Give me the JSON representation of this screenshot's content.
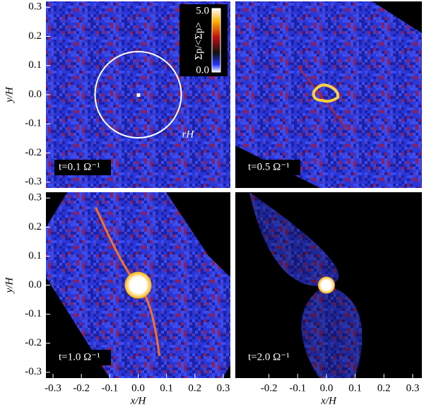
{
  "chart_data": [
    {
      "type": "density-map",
      "annotation": "t=0.1 Ω⁻¹",
      "circle_label": "rH",
      "ylabel": "y/H",
      "xlim": [
        -0.325,
        0.325
      ],
      "ylim": [
        -0.32,
        0.32
      ],
      "yticks": [
        0.3,
        0.2,
        0.1,
        {
          "value": 0,
          "label": "0.0"
        },
        -0.1,
        -0.2,
        -0.3
      ]
    },
    {
      "type": "density-map",
      "annotation": "t=0.5 Ω⁻¹",
      "xlim": [
        -0.317,
        0.332
      ],
      "ylim": [
        -0.32,
        0.32
      ]
    },
    {
      "type": "density-map",
      "annotation": "t=1.0 Ω⁻¹",
      "ylabel": "y/H",
      "xlabel": "x/H",
      "xlim": [
        -0.325,
        0.325
      ],
      "ylim": [
        -0.32,
        0.32
      ],
      "xticks": [
        -0.3,
        -0.2,
        -0.1,
        {
          "value": 0,
          "label": "0.0"
        },
        0.1,
        0.2,
        0.3
      ],
      "yticks": [
        0.3,
        0.2,
        0.1,
        {
          "value": 0,
          "label": "0.0"
        },
        -0.1,
        -0.2,
        -0.3
      ]
    },
    {
      "type": "density-map",
      "annotation": "t=2.0 Ω⁻¹",
      "xlabel": "x/H",
      "xlim": [
        -0.317,
        0.332
      ],
      "ylim": [
        -0.32,
        0.32
      ],
      "xticks": [
        -0.2,
        -0.1,
        {
          "value": 0,
          "label": "0.0"
        },
        0.1,
        0.2,
        0.3
      ]
    }
  ],
  "colorbar": {
    "title": "Σp/<Σp>",
    "max_label": "5.0",
    "min_label": "0.0"
  }
}
